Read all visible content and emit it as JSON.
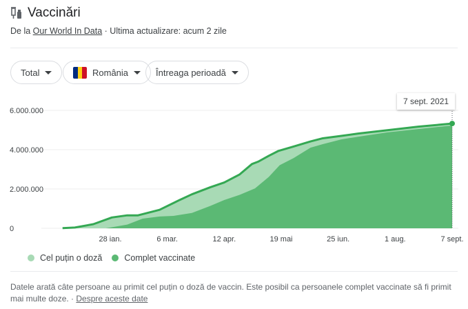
{
  "header": {
    "title": "Vaccinări",
    "icon": "vaccine-icon",
    "source_prefix": "De la",
    "source_link": "Our World In Data",
    "updated": "· Ultima actualizare: acum 2 zile"
  },
  "filters": [
    {
      "label": "Total"
    },
    {
      "label": "România",
      "flag_colors": [
        "#002b7f",
        "#fcd116",
        "#ce1126"
      ]
    },
    {
      "label": "Întreaga perioadă"
    }
  ],
  "tooltip": "7 sept. 2021",
  "footer": {
    "text": "Datele arată câte persoane au primit cel puțin o doză de vaccin. Este posibil ca persoanele complet vaccinate să fi primit mai multe doze.",
    "separator": "·",
    "link": "Despre aceste date"
  },
  "chart_data": {
    "type": "area",
    "ylim": [
      0,
      6000000
    ],
    "yticks": [
      {
        "value": 0,
        "label": "0"
      },
      {
        "value": 2000000,
        "label": "2.000.000"
      },
      {
        "value": 4000000,
        "label": "4.000.000"
      },
      {
        "value": 6000000,
        "label": "6.000.000"
      }
    ],
    "xticks": [
      {
        "date": "2021-01-28",
        "label": "28 ian."
      },
      {
        "date": "2021-03-06",
        "label": "6 mar."
      },
      {
        "date": "2021-04-12",
        "label": "12 apr."
      },
      {
        "date": "2021-05-19",
        "label": "19 mai"
      },
      {
        "date": "2021-06-25",
        "label": "25 iun."
      },
      {
        "date": "2021-08-01",
        "label": "1 aug."
      },
      {
        "date": "2021-09-07",
        "label": "7 sept."
      }
    ],
    "grid": true,
    "legend_position": "bottom-left",
    "series": [
      {
        "name": "Cel puțin o doză",
        "color": "#a8dab5",
        "line_color": "#34a853",
        "points": [
          [
            "2020-12-28",
            10000
          ],
          [
            "2021-01-05",
            40000
          ],
          [
            "2021-01-17",
            210000
          ],
          [
            "2021-01-29",
            550000
          ],
          [
            "2021-02-08",
            660000
          ],
          [
            "2021-02-15",
            660000
          ],
          [
            "2021-03-01",
            940000
          ],
          [
            "2021-03-14",
            1440000
          ],
          [
            "2021-03-22",
            1730000
          ],
          [
            "2021-04-03",
            2090000
          ],
          [
            "2021-04-12",
            2330000
          ],
          [
            "2021-04-22",
            2740000
          ],
          [
            "2021-04-30",
            3270000
          ],
          [
            "2021-05-04",
            3390000
          ],
          [
            "2021-05-11",
            3690000
          ],
          [
            "2021-05-17",
            3930000
          ],
          [
            "2021-05-27",
            4160000
          ],
          [
            "2021-06-07",
            4420000
          ],
          [
            "2021-06-15",
            4580000
          ],
          [
            "2021-06-27",
            4700000
          ],
          [
            "2021-07-08",
            4820000
          ],
          [
            "2021-07-27",
            4990000
          ],
          [
            "2021-08-16",
            5170000
          ],
          [
            "2021-09-07",
            5330000
          ]
        ]
      },
      {
        "name": "Complet vaccinate",
        "color": "#5bb974",
        "points": [
          [
            "2021-01-25",
            0
          ],
          [
            "2021-02-08",
            190000
          ],
          [
            "2021-02-18",
            490000
          ],
          [
            "2021-03-01",
            600000
          ],
          [
            "2021-03-10",
            630000
          ],
          [
            "2021-03-22",
            780000
          ],
          [
            "2021-04-03",
            1140000
          ],
          [
            "2021-04-12",
            1440000
          ],
          [
            "2021-04-22",
            1700000
          ],
          [
            "2021-05-02",
            2030000
          ],
          [
            "2021-05-11",
            2620000
          ],
          [
            "2021-05-18",
            3210000
          ],
          [
            "2021-05-27",
            3570000
          ],
          [
            "2021-06-07",
            4100000
          ],
          [
            "2021-06-15",
            4280000
          ],
          [
            "2021-06-27",
            4520000
          ],
          [
            "2021-07-08",
            4660000
          ],
          [
            "2021-07-27",
            4880000
          ],
          [
            "2021-08-16",
            5050000
          ],
          [
            "2021-09-07",
            5230000
          ]
        ]
      }
    ]
  }
}
